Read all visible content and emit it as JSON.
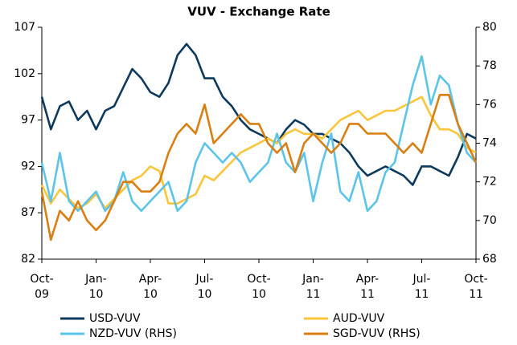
{
  "chart_data": {
    "type": "line",
    "title": "VUV - Exchange Rate",
    "x": [
      0,
      0.5,
      1,
      1.5,
      2,
      2.5,
      3,
      3.5,
      4,
      4.5,
      5,
      5.5,
      6,
      6.5,
      7,
      7.5,
      8,
      8.5,
      9,
      9.5,
      10,
      10.5,
      11,
      11.5,
      12,
      12.5,
      13,
      13.5,
      14,
      14.5,
      15,
      15.5,
      16,
      16.5,
      17,
      17.5,
      18,
      18.5,
      19,
      19.5,
      20,
      20.5,
      21,
      21.5,
      22,
      22.5,
      23,
      23.5,
      24
    ],
    "xlim": [
      0,
      24
    ],
    "xticks": [
      {
        "value": 0,
        "label": "Oct-\n09"
      },
      {
        "value": 3,
        "label": "Jan-\n10"
      },
      {
        "value": 6,
        "label": "Apr-\n10"
      },
      {
        "value": 9,
        "label": "Jul-\n10"
      },
      {
        "value": 12,
        "label": "Oct-\n10"
      },
      {
        "value": 15,
        "label": "Jan-\n11"
      },
      {
        "value": 18,
        "label": "Apr-\n11"
      },
      {
        "value": 21,
        "label": "Jul-\n11"
      },
      {
        "value": 24,
        "label": "Oct-\n11"
      }
    ],
    "ylim": [
      82,
      107
    ],
    "yticks": [
      82,
      87,
      92,
      97,
      102,
      107
    ],
    "y2lim": [
      68,
      80
    ],
    "y2ticks": [
      68,
      70,
      72,
      74,
      76,
      78,
      80
    ],
    "series": [
      {
        "name": "USD-VUV",
        "color": "#0d3a5c",
        "values": [
          99.5,
          96,
          98.5,
          99,
          97,
          98,
          96,
          98,
          98.5,
          100.5,
          102.5,
          101.5,
          100,
          99.5,
          101,
          104,
          105.2,
          104,
          101.5,
          101.5,
          99.5,
          98.5,
          97,
          96,
          95.5,
          95,
          94.5,
          96,
          97,
          96.5,
          95.5,
          95.5,
          95,
          94.5,
          93.5,
          92,
          91,
          91.5,
          92,
          91.5,
          91,
          90,
          92,
          92,
          91.5,
          91,
          93,
          95.5,
          95
        ]
      },
      {
        "name": "AUD-VUV",
        "color": "#f9c53b",
        "values": [
          90,
          88,
          89.5,
          88.5,
          87.5,
          88,
          89,
          87.5,
          88.5,
          89.5,
          90.5,
          91,
          92,
          91.5,
          88,
          88,
          88.5,
          89,
          91,
          90.5,
          91.5,
          92.5,
          93.5,
          94,
          94.5,
          95,
          94.5,
          95.5,
          96,
          95.5,
          95.5,
          95,
          96,
          97,
          97.5,
          98,
          97,
          97.5,
          98,
          98,
          98.5,
          99,
          99.5,
          97.5,
          96,
          96,
          95.5,
          94,
          93.5
        ]
      },
      {
        "name": "NZD-VUV (RHS)",
        "color": "#5bc4e8",
        "axis": "y2",
        "values": [
          73,
          71,
          73.5,
          71,
          70.5,
          71,
          71.5,
          70.5,
          71,
          72.5,
          71,
          70.5,
          71,
          71.5,
          72,
          70.5,
          71,
          73,
          74,
          73.5,
          73,
          73.5,
          73,
          72,
          72.5,
          73,
          74.5,
          73,
          72.5,
          73.5,
          71,
          73,
          74.5,
          71.5,
          71,
          72.5,
          70.5,
          71,
          72.5,
          73,
          75,
          77,
          78.5,
          76,
          77.5,
          77,
          75,
          73.5,
          73
        ]
      },
      {
        "name": "SGD-VUV (RHS)",
        "color": "#d97f12",
        "axis": "y2",
        "values": [
          71.5,
          69,
          70.5,
          70,
          71,
          70,
          69.5,
          70,
          71,
          72,
          72,
          71.5,
          71.5,
          72,
          73.5,
          74.5,
          75,
          74.5,
          76,
          74,
          74.5,
          75,
          75.5,
          75,
          75,
          74,
          73.5,
          74,
          72.5,
          74,
          74.5,
          74,
          73.5,
          74,
          75,
          75,
          74.5,
          74.5,
          74.5,
          74,
          73.5,
          74,
          73.5,
          75,
          76.5,
          76.5,
          75,
          74,
          73
        ]
      }
    ]
  }
}
